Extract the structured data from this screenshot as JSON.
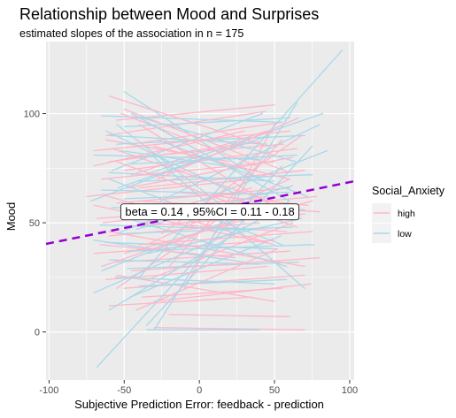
{
  "chart_data": {
    "type": "line",
    "title": "Relationship between Mood and Surprises",
    "subtitle": "estimated slopes of the association in n =  175",
    "xlabel": "Subjective Prediction Error: feedback - prediction",
    "ylabel": "Mood",
    "xlim": [
      -102,
      103
    ],
    "ylim": [
      -22,
      133
    ],
    "x_ticks": [
      -100,
      -50,
      0,
      50,
      100
    ],
    "y_ticks": [
      0,
      50,
      100
    ],
    "x_tick_labels": [
      "-100",
      "-50",
      "0",
      "50",
      "100"
    ],
    "y_tick_labels": [
      "0",
      "50",
      "100"
    ],
    "grid": true,
    "background": "#ebebeb",
    "legend": {
      "title": "Social_Anxiety",
      "position": "right",
      "entries": [
        {
          "label": "high",
          "color": "#ffb6c8"
        },
        {
          "label": "low",
          "color": "#a8d8ea"
        }
      ]
    },
    "series": [
      {
        "name": "high",
        "color": "#ffb6c8",
        "segments": [
          [
            [
              -55,
              97
            ],
            [
              50,
              104
            ]
          ],
          [
            [
              -62,
              90
            ],
            [
              44,
              101
            ]
          ],
          [
            [
              -45,
              86
            ],
            [
              55,
              96
            ]
          ],
          [
            [
              -70,
              83
            ],
            [
              60,
              92
            ]
          ],
          [
            [
              -60,
              78
            ],
            [
              40,
              87
            ]
          ],
          [
            [
              -50,
              74
            ],
            [
              65,
              84
            ]
          ],
          [
            [
              -65,
              70
            ],
            [
              50,
              78
            ]
          ],
          [
            [
              -40,
              66
            ],
            [
              70,
              74
            ]
          ],
          [
            [
              -75,
              62
            ],
            [
              35,
              70
            ]
          ],
          [
            [
              -55,
              59
            ],
            [
              60,
              66
            ]
          ],
          [
            [
              -45,
              55
            ],
            [
              45,
              62
            ]
          ],
          [
            [
              -68,
              52
            ],
            [
              55,
              58
            ]
          ],
          [
            [
              -50,
              48
            ],
            [
              70,
              54
            ]
          ],
          [
            [
              -60,
              44
            ],
            [
              40,
              50
            ]
          ],
          [
            [
              -40,
              40
            ],
            [
              75,
              46
            ]
          ],
          [
            [
              -70,
              36
            ],
            [
              50,
              42
            ]
          ],
          [
            [
              -55,
              32
            ],
            [
              60,
              37
            ]
          ],
          [
            [
              -45,
              28
            ],
            [
              80,
              34
            ]
          ],
          [
            [
              -62,
              24
            ],
            [
              45,
              30
            ]
          ],
          [
            [
              -50,
              20
            ],
            [
              70,
              26
            ]
          ],
          [
            [
              -38,
              16
            ],
            [
              55,
              20
            ]
          ],
          [
            [
              -60,
              12
            ],
            [
              35,
              16
            ]
          ],
          [
            [
              -30,
              2
            ],
            [
              70,
              1
            ]
          ],
          [
            [
              -20,
              8
            ],
            [
              60,
              7
            ]
          ],
          [
            [
              -65,
              63
            ],
            [
              45,
              41
            ]
          ],
          [
            [
              -55,
              78
            ],
            [
              65,
              48
            ]
          ],
          [
            [
              -40,
              95
            ],
            [
              55,
              55
            ]
          ],
          [
            [
              -50,
              102
            ],
            [
              60,
              73
            ]
          ],
          [
            [
              -70,
              58
            ],
            [
              50,
              40
            ]
          ],
          [
            [
              -60,
              46
            ],
            [
              70,
              30
            ]
          ],
          [
            [
              -45,
              72
            ],
            [
              45,
              92
            ]
          ],
          [
            [
              -35,
              40
            ],
            [
              60,
              70
            ]
          ],
          [
            [
              -20,
              30
            ],
            [
              55,
              88
            ]
          ],
          [
            [
              -10,
              20
            ],
            [
              50,
              95
            ]
          ],
          [
            [
              -65,
              30
            ],
            [
              40,
              55
            ]
          ],
          [
            [
              -55,
              20
            ],
            [
              30,
              60
            ]
          ],
          [
            [
              -60,
              108
            ],
            [
              45,
              85
            ]
          ],
          [
            [
              -40,
              60
            ],
            [
              80,
              55
            ]
          ],
          [
            [
              -50,
              36
            ],
            [
              75,
              60
            ]
          ],
          [
            [
              -30,
              85
            ],
            [
              60,
              70
            ]
          ],
          [
            [
              -45,
              52
            ],
            [
              35,
              66
            ]
          ],
          [
            [
              -62,
              88
            ],
            [
              20,
              78
            ]
          ],
          [
            [
              -25,
              45
            ],
            [
              68,
              90
            ]
          ],
          [
            [
              -15,
              64
            ],
            [
              72,
              58
            ]
          ],
          [
            [
              -55,
              26
            ],
            [
              50,
              14
            ]
          ],
          [
            [
              -48,
              66
            ],
            [
              62,
              80
            ]
          ],
          [
            [
              -36,
              50
            ],
            [
              58,
              46
            ]
          ],
          [
            [
              -70,
              76
            ],
            [
              30,
              92
            ]
          ],
          [
            [
              -42,
              10
            ],
            [
              52,
              38
            ]
          ],
          [
            [
              -58,
              84
            ],
            [
              46,
              60
            ]
          ],
          [
            [
              -28,
              70
            ],
            [
              66,
              98
            ]
          ],
          [
            [
              -66,
              40
            ],
            [
              24,
              34
            ]
          ],
          [
            [
              -34,
              24
            ],
            [
              62,
              50
            ]
          ],
          [
            [
              -52,
              100
            ],
            [
              38,
              76
            ]
          ],
          [
            [
              -22,
              56
            ],
            [
              78,
              62
            ]
          ],
          [
            [
              -44,
              80
            ],
            [
              56,
              86
            ]
          ],
          [
            [
              -64,
              50
            ],
            [
              36,
              58
            ]
          ],
          [
            [
              -30,
              14
            ],
            [
              74,
              22
            ]
          ]
        ]
      },
      {
        "name": "low",
        "color": "#a8d8ea",
        "segments": [
          [
            [
              -65,
              99
            ],
            [
              55,
              96
            ]
          ],
          [
            [
              -50,
              94
            ],
            [
              60,
              98
            ]
          ],
          [
            [
              -60,
              90
            ],
            [
              45,
              86
            ]
          ],
          [
            [
              -55,
              86
            ],
            [
              70,
              90
            ]
          ],
          [
            [
              -70,
              81
            ],
            [
              40,
              79
            ]
          ],
          [
            [
              -45,
              77
            ],
            [
              65,
              81
            ]
          ],
          [
            [
              -60,
              73
            ],
            [
              50,
              69
            ]
          ],
          [
            [
              -40,
              69
            ],
            [
              75,
              72
            ]
          ],
          [
            [
              -65,
              65
            ],
            [
              45,
              63
            ]
          ],
          [
            [
              -50,
              61
            ],
            [
              60,
              64
            ]
          ],
          [
            [
              -58,
              57
            ],
            [
              48,
              55
            ]
          ],
          [
            [
              -42,
              53
            ],
            [
              70,
              56
            ]
          ],
          [
            [
              -66,
              49
            ],
            [
              36,
              47
            ]
          ],
          [
            [
              -52,
              45
            ],
            [
              62,
              48
            ]
          ],
          [
            [
              -62,
              41
            ],
            [
              52,
              38
            ]
          ],
          [
            [
              -46,
              37
            ],
            [
              76,
              40
            ]
          ],
          [
            [
              -60,
              33
            ],
            [
              40,
              31
            ]
          ],
          [
            [
              -48,
              29
            ],
            [
              66,
              32
            ]
          ],
          [
            [
              -56,
              25
            ],
            [
              50,
              22
            ]
          ],
          [
            [
              -40,
              21
            ],
            [
              58,
              24
            ]
          ],
          [
            [
              -35,
              1
            ],
            [
              40,
              1
            ]
          ],
          [
            [
              -70,
              18
            ],
            [
              30,
              48
            ]
          ],
          [
            [
              -30,
              1
            ],
            [
              65,
              105
            ]
          ],
          [
            [
              -60,
              10
            ],
            [
              60,
              60
            ]
          ],
          [
            [
              -35,
              3
            ],
            [
              75,
              85
            ]
          ],
          [
            [
              -55,
              45
            ],
            [
              85,
              83
            ]
          ],
          [
            [
              -68,
              -16
            ],
            [
              55,
              76
            ]
          ],
          [
            [
              -40,
              25
            ],
            [
              95,
              129
            ]
          ],
          [
            [
              -50,
              110
            ],
            [
              40,
              70
            ]
          ],
          [
            [
              -45,
              100
            ],
            [
              60,
              60
            ]
          ],
          [
            [
              -55,
              95
            ],
            [
              30,
              50
            ]
          ],
          [
            [
              -60,
              70
            ],
            [
              55,
              40
            ]
          ],
          [
            [
              -30,
              80
            ],
            [
              70,
              20
            ]
          ],
          [
            [
              -65,
              28
            ],
            [
              45,
              58
            ]
          ],
          [
            [
              -42,
              47
            ],
            [
              62,
              67
            ]
          ],
          [
            [
              -52,
              83
            ],
            [
              38,
              74
            ]
          ],
          [
            [
              -72,
              60
            ],
            [
              28,
              86
            ]
          ],
          [
            [
              -34,
              36
            ],
            [
              68,
              52
            ]
          ],
          [
            [
              -58,
              74
            ],
            [
              42,
              100
            ]
          ],
          [
            [
              -26,
              60
            ],
            [
              80,
              95
            ]
          ],
          [
            [
              -62,
              92
            ],
            [
              22,
              64
            ]
          ],
          [
            [
              -46,
              16
            ],
            [
              54,
              44
            ]
          ],
          [
            [
              -38,
              98
            ],
            [
              64,
              78
            ]
          ],
          [
            [
              -54,
              66
            ],
            [
              46,
              90
            ]
          ],
          [
            [
              -70,
              42
            ],
            [
              30,
              32
            ]
          ],
          [
            [
              -28,
              88
            ],
            [
              72,
              62
            ]
          ],
          [
            [
              -48,
              52
            ],
            [
              58,
              30
            ]
          ],
          [
            [
              -36,
              72
            ],
            [
              82,
              100
            ]
          ]
        ]
      }
    ],
    "regression_line": {
      "slope": 0.14,
      "intercept": 54.6,
      "color": "#9400d3",
      "style": "dashed"
    },
    "annotation": {
      "text": "beta =  0.14 , 95%CI =  0.11 - 0.18",
      "x": 7,
      "y": 55
    }
  }
}
